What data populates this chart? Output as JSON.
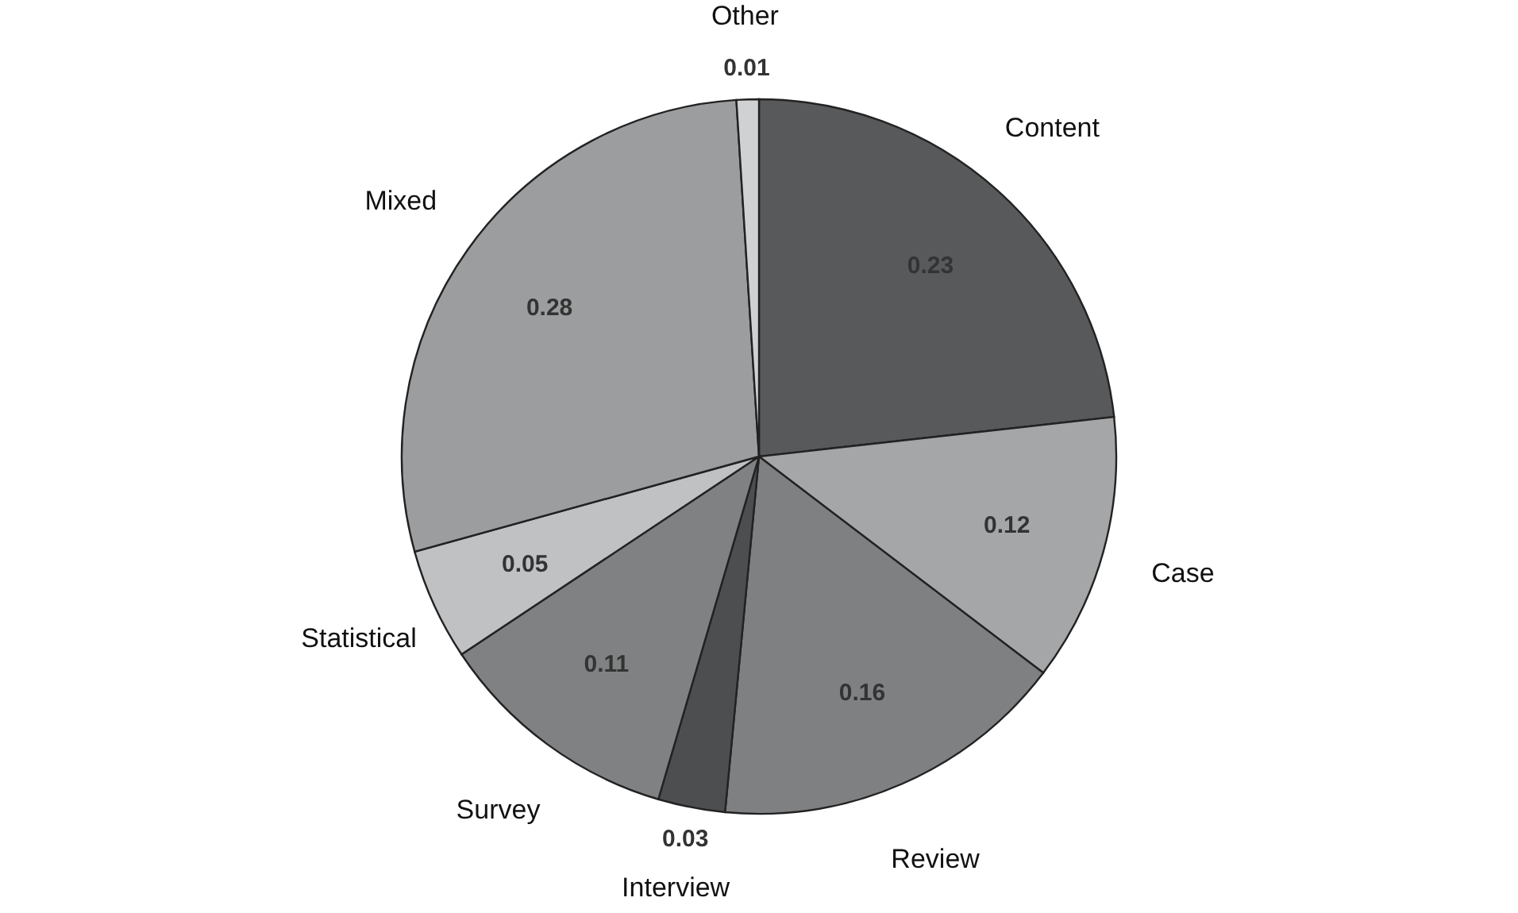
{
  "chart_data": {
    "type": "pie",
    "categories": [
      "Content",
      "Case",
      "Review",
      "Interview",
      "Survey",
      "Statistical",
      "Mixed",
      "Other"
    ],
    "values": [
      0.23,
      0.12,
      0.16,
      0.03,
      0.11,
      0.05,
      0.28,
      0.01
    ],
    "colors": [
      "#58595b",
      "#a5a6a8",
      "#7f8082",
      "#4d4e50",
      "#808183",
      "#c0c1c3",
      "#9c9d9f",
      "#d0d1d3"
    ],
    "data_labels": true
  }
}
